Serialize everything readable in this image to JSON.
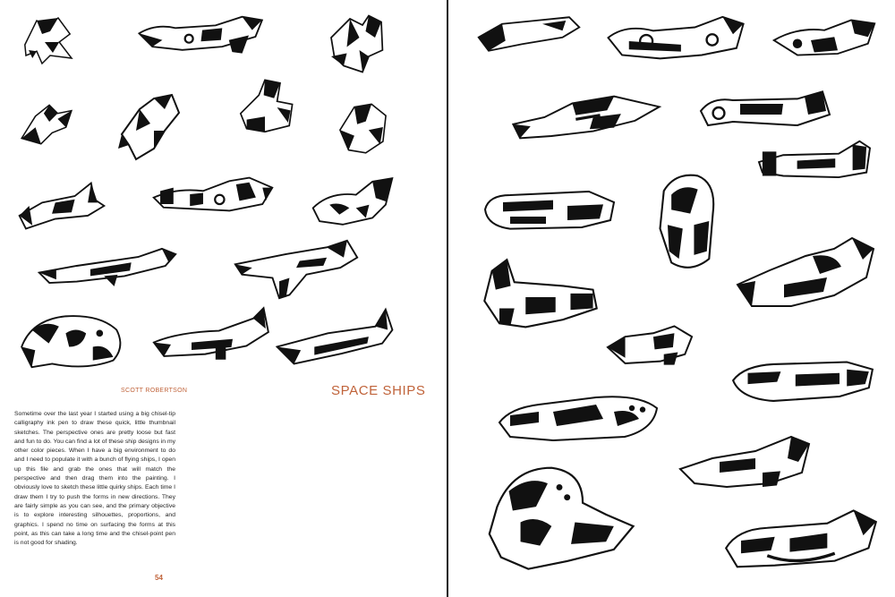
{
  "colors": {
    "accent": "#c0633a",
    "ink": "#111111",
    "paper": "#ffffff"
  },
  "left_page": {
    "author": "SCOTT ROBERTSON",
    "title": "SPACE SHIPS",
    "body": "Sometime over the last year I started using a big chisel-tip calligraphy ink pen to draw these quick, little thumbnail sketches. The perspective ones are pretty loose but fast and fun to do. You can find a lot of these ship designs in my other color pieces. When I have a big environment to do and I need to populate it with a bunch of flying ships, I open up this file and grab the ones that will match the perspective and then drag them into the painting. I obviously love to sketch these little quirky ships. Each time I draw them I try to push the forms in new directions. They are fairly simple as you can see, and the primary objective is to explore interesting silhouettes, proportions, and graphics. I spend no time on surfacing the forms at this point, as this can take a long time and the chisel-point pen is not good for shading.",
    "page_number": "54"
  },
  "illustration": {
    "subject": "ink thumbnail sketches of space ships",
    "icon": "ship-sketch-icon"
  }
}
